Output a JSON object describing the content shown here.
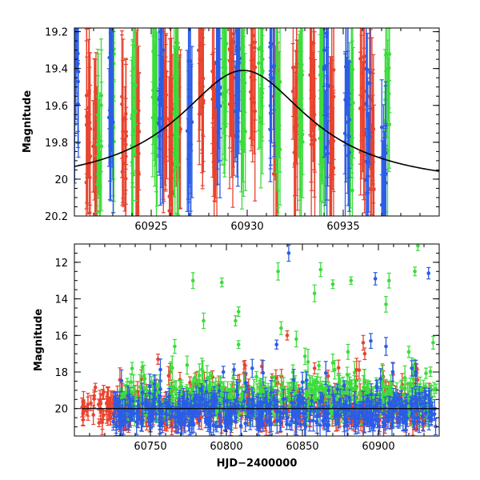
{
  "chart_data": [
    {
      "type": "scatter",
      "panel": "top",
      "xlabel": "",
      "ylabel": "Magnitude",
      "xlim": [
        60921,
        60940
      ],
      "ylim": [
        20.2,
        19.18
      ],
      "y_inverted": true,
      "x_ticks": [
        60925,
        60930,
        60935
      ],
      "x_tick_labels": [
        "60925",
        "60930",
        "60935"
      ],
      "y_ticks": [
        19.2,
        19.4,
        19.6,
        19.8,
        20.0,
        20.2
      ],
      "y_tick_labels": [
        "19.2",
        "19.4",
        "19.6",
        "19.8",
        "20",
        "20.2"
      ],
      "grid": false,
      "model_curve": {
        "kind": "lorentzian",
        "peak_x": 60929.8,
        "peak_mag": 19.41,
        "baseline_mag": 20.05,
        "half_width_days": 4.2
      },
      "series": [
        {
          "color": "#e8432e",
          "clusters": [
            {
              "x": 60921.7,
              "mag": 19.75,
              "spread": 0.35
            },
            {
              "x": 60922.1,
              "mag": 19.95,
              "spread": 0.3
            },
            {
              "x": 60923.6,
              "mag": 19.7,
              "spread": 0.3
            },
            {
              "x": 60924.3,
              "mag": 19.85,
              "spread": 0.3
            },
            {
              "x": 60925.7,
              "mag": 19.65,
              "spread": 0.25
            },
            {
              "x": 60926.0,
              "mag": 19.9,
              "spread": 0.3
            },
            {
              "x": 60926.4,
              "mag": 19.55,
              "spread": 0.3
            },
            {
              "x": 60927.6,
              "mag": 19.5,
              "spread": 0.25
            },
            {
              "x": 60928.3,
              "mag": 19.7,
              "spread": 0.3
            },
            {
              "x": 60929.2,
              "mag": 19.55,
              "spread": 0.35
            },
            {
              "x": 60930.3,
              "mag": 19.4,
              "spread": 0.25
            },
            {
              "x": 60931.5,
              "mag": 19.65,
              "spread": 0.35
            },
            {
              "x": 60932.5,
              "mag": 19.65,
              "spread": 0.35
            },
            {
              "x": 60933.4,
              "mag": 19.55,
              "spread": 0.3
            },
            {
              "x": 60934.4,
              "mag": 19.7,
              "spread": 0.3
            },
            {
              "x": 60936.0,
              "mag": 19.6,
              "spread": 0.3
            },
            {
              "x": 60936.5,
              "mag": 19.85,
              "spread": 0.3
            }
          ]
        },
        {
          "color": "#3cdc3c",
          "clusters": [
            {
              "x": 60922.3,
              "mag": 19.8,
              "spread": 0.3
            },
            {
              "x": 60923.0,
              "mag": 19.55,
              "spread": 0.35
            },
            {
              "x": 60924.1,
              "mag": 19.7,
              "spread": 0.35
            },
            {
              "x": 60925.2,
              "mag": 19.5,
              "spread": 0.3
            },
            {
              "x": 60926.3,
              "mag": 19.6,
              "spread": 0.35
            },
            {
              "x": 60928.8,
              "mag": 19.45,
              "spread": 0.3
            },
            {
              "x": 60929.8,
              "mag": 19.5,
              "spread": 0.35
            },
            {
              "x": 60930.7,
              "mag": 19.45,
              "spread": 0.3
            },
            {
              "x": 60931.6,
              "mag": 19.6,
              "spread": 0.3
            },
            {
              "x": 60932.8,
              "mag": 19.5,
              "spread": 0.35
            },
            {
              "x": 60933.9,
              "mag": 19.7,
              "spread": 0.35
            },
            {
              "x": 60935.4,
              "mag": 19.75,
              "spread": 0.35
            },
            {
              "x": 60937.3,
              "mag": 19.6,
              "spread": 0.3
            }
          ]
        },
        {
          "color": "#2b5ce6",
          "clusters": [
            {
              "x": 60921.1,
              "mag": 19.4,
              "spread": 0.2
            },
            {
              "x": 60922.9,
              "mag": 19.55,
              "spread": 0.3
            },
            {
              "x": 60925.5,
              "mag": 19.5,
              "spread": 0.3
            },
            {
              "x": 60927.0,
              "mag": 19.65,
              "spread": 0.3
            },
            {
              "x": 60928.5,
              "mag": 19.4,
              "spread": 0.25
            },
            {
              "x": 60929.5,
              "mag": 19.45,
              "spread": 0.35
            },
            {
              "x": 60931.3,
              "mag": 19.5,
              "spread": 0.3
            },
            {
              "x": 60934.1,
              "mag": 19.55,
              "spread": 0.35
            },
            {
              "x": 60935.2,
              "mag": 19.6,
              "spread": 0.3
            },
            {
              "x": 60936.3,
              "mag": 19.75,
              "spread": 0.35
            },
            {
              "x": 60937.1,
              "mag": 19.95,
              "spread": 0.3
            }
          ]
        }
      ]
    },
    {
      "type": "scatter",
      "panel": "bottom",
      "xlabel": "HJD−2400000",
      "ylabel": "Magnitude",
      "xlim": [
        60700,
        60940
      ],
      "ylim": [
        21.5,
        11.0
      ],
      "y_inverted": true,
      "x_ticks": [
        60750,
        60800,
        60850,
        60900
      ],
      "x_tick_labels": [
        "60750",
        "60800",
        "60850",
        "60900"
      ],
      "y_ticks": [
        12,
        14,
        16,
        18,
        20
      ],
      "y_tick_labels": [
        "12",
        "14",
        "16",
        "18",
        "20"
      ],
      "grid": false,
      "band": {
        "mag": 20.0,
        "x_start": 60705,
        "x_end": 60940
      },
      "series": [
        {
          "color": "#e8432e",
          "x_range": [
            60705,
            60935
          ],
          "band_mag": 20.0,
          "outliers": [
            {
              "x": 60713,
              "mag": 19.3
            },
            {
              "x": 60755,
              "mag": 17.3
            },
            {
              "x": 60762,
              "mag": 18.2
            },
            {
              "x": 60812,
              "mag": 17.6
            },
            {
              "x": 60830,
              "mag": 18.3
            },
            {
              "x": 60840,
              "mag": 16.0
            },
            {
              "x": 60858,
              "mag": 17.8
            },
            {
              "x": 60890,
              "mag": 16.4
            },
            {
              "x": 60891,
              "mag": 17.0
            },
            {
              "x": 60925,
              "mag": 19.2
            },
            {
              "x": 60763,
              "mag": 18.0
            }
          ]
        },
        {
          "color": "#3cdc3c",
          "x_range": [
            60730,
            60938
          ],
          "band_mag": 19.6,
          "outliers": [
            {
              "x": 60778,
              "mag": 13.0
            },
            {
              "x": 60785,
              "mag": 15.2
            },
            {
              "x": 60797,
              "mag": 13.1
            },
            {
              "x": 60808,
              "mag": 14.7
            },
            {
              "x": 60806,
              "mag": 15.2
            },
            {
              "x": 60766,
              "mag": 16.6
            },
            {
              "x": 60808,
              "mag": 16.5
            },
            {
              "x": 60834,
              "mag": 12.5
            },
            {
              "x": 60836,
              "mag": 15.6
            },
            {
              "x": 60862,
              "mag": 12.4
            },
            {
              "x": 60858,
              "mag": 13.7
            },
            {
              "x": 60870,
              "mag": 13.2
            },
            {
              "x": 60882,
              "mag": 13.0
            },
            {
              "x": 60905,
              "mag": 14.3
            },
            {
              "x": 60907,
              "mag": 13.0
            },
            {
              "x": 60924,
              "mag": 12.5
            },
            {
              "x": 60926,
              "mag": 11.1
            },
            {
              "x": 60936,
              "mag": 16.4
            },
            {
              "x": 60846,
              "mag": 16.2
            },
            {
              "x": 60880,
              "mag": 16.9
            },
            {
              "x": 60920,
              "mag": 16.9
            },
            {
              "x": 60790,
              "mag": 18.2
            },
            {
              "x": 60870,
              "mag": 17.5
            }
          ]
        },
        {
          "color": "#2b5ce6",
          "x_range": [
            60725,
            60938
          ],
          "band_mag": 20.2,
          "outliers": [
            {
              "x": 60841,
              "mag": 11.5
            },
            {
              "x": 60898,
              "mag": 12.9
            },
            {
              "x": 60933,
              "mag": 12.6
            },
            {
              "x": 60798,
              "mag": 18.0
            },
            {
              "x": 60833,
              "mag": 16.5
            },
            {
              "x": 60895,
              "mag": 16.3
            },
            {
              "x": 60905,
              "mag": 16.6
            },
            {
              "x": 60922,
              "mag": 17.8
            },
            {
              "x": 60817,
              "mag": 17.8
            }
          ]
        }
      ]
    }
  ]
}
